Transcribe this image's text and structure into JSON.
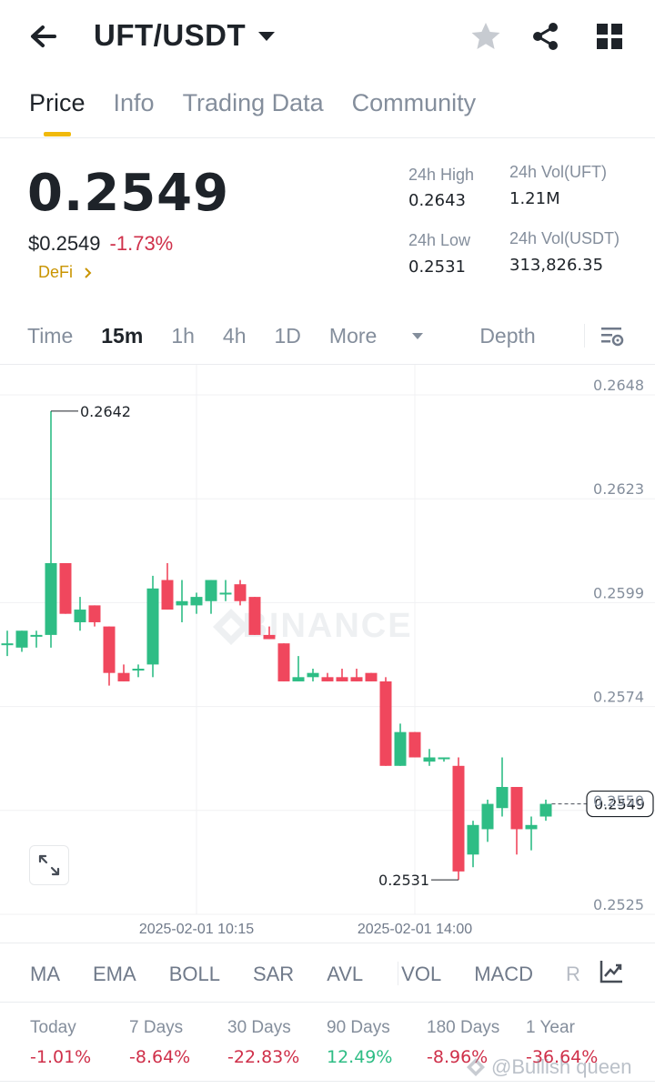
{
  "header": {
    "pair": "UFT/USDT",
    "icons": [
      "back-arrow-icon",
      "caret-down-icon",
      "star-icon",
      "share-icon",
      "grid-icon"
    ]
  },
  "tabs": [
    {
      "label": "Price",
      "active": true
    },
    {
      "label": "Info",
      "active": false
    },
    {
      "label": "Trading Data",
      "active": false
    },
    {
      "label": "Community",
      "active": false
    }
  ],
  "price": {
    "last": "0.2549",
    "fiat": "$0.2549",
    "change": "-1.73%",
    "tag": "DeFi"
  },
  "stats": {
    "high_label": "24h High",
    "high_value": "0.2643",
    "low_label": "24h Low",
    "low_value": "0.2531",
    "vol_base_label": "24h Vol(UFT)",
    "vol_base_value": "1.21M",
    "vol_quote_label": "24h Vol(USDT)",
    "vol_quote_value": "313,826.35"
  },
  "intervals": {
    "items": [
      "Time",
      "15m",
      "1h",
      "4h",
      "1D"
    ],
    "active": "15m",
    "more": "More",
    "depth": "Depth"
  },
  "colors": {
    "up": "#2ebd85",
    "down": "#f0475d",
    "accent": "#f0b90b"
  },
  "chart_data": {
    "type": "candlestick",
    "interval": "15m",
    "watermark": "BINANCE",
    "y_ticks": [
      "0.2648",
      "0.2623",
      "0.2599",
      "0.2574",
      "0.2550",
      "0.2525"
    ],
    "ylim": [
      0.2525,
      0.2648
    ],
    "x_ticks": [
      {
        "label": "2025-02-01 10:15",
        "index": 13
      },
      {
        "label": "2025-02-01 14:00",
        "index": 28
      }
    ],
    "current_price": "0.2549",
    "high_marker": {
      "label": "0.2642",
      "value": 0.2642,
      "index": 3
    },
    "low_marker": {
      "label": "0.2531",
      "value": 0.2531,
      "index": 31
    },
    "candles": [
      {
        "o": 0.2587,
        "h": 0.259,
        "l": 0.2584,
        "c": 0.2587
      },
      {
        "o": 0.2586,
        "h": 0.259,
        "l": 0.2585,
        "c": 0.259
      },
      {
        "o": 0.2589,
        "h": 0.259,
        "l": 0.2586,
        "c": 0.2589
      },
      {
        "o": 0.2589,
        "h": 0.2642,
        "l": 0.2586,
        "c": 0.2606
      },
      {
        "o": 0.2606,
        "h": 0.2606,
        "l": 0.2594,
        "c": 0.2594
      },
      {
        "o": 0.2592,
        "h": 0.2598,
        "l": 0.259,
        "c": 0.2595
      },
      {
        "o": 0.2596,
        "h": 0.2596,
        "l": 0.2591,
        "c": 0.2592
      },
      {
        "o": 0.2591,
        "h": 0.2591,
        "l": 0.2577,
        "c": 0.258
      },
      {
        "o": 0.258,
        "h": 0.2582,
        "l": 0.2578,
        "c": 0.2578
      },
      {
        "o": 0.2581,
        "h": 0.2582,
        "l": 0.2579,
        "c": 0.2581
      },
      {
        "o": 0.2582,
        "h": 0.2603,
        "l": 0.2579,
        "c": 0.26
      },
      {
        "o": 0.2602,
        "h": 0.2606,
        "l": 0.2595,
        "c": 0.2595
      },
      {
        "o": 0.2596,
        "h": 0.2602,
        "l": 0.2592,
        "c": 0.2597
      },
      {
        "o": 0.2596,
        "h": 0.2599,
        "l": 0.2594,
        "c": 0.2598
      },
      {
        "o": 0.2597,
        "h": 0.2602,
        "l": 0.2594,
        "c": 0.2602
      },
      {
        "o": 0.2599,
        "h": 0.2602,
        "l": 0.2597,
        "c": 0.2599
      },
      {
        "o": 0.2601,
        "h": 0.2602,
        "l": 0.2596,
        "c": 0.2597
      },
      {
        "o": 0.2598,
        "h": 0.2598,
        "l": 0.2589,
        "c": 0.2589
      },
      {
        "o": 0.2589,
        "h": 0.2591,
        "l": 0.2588,
        "c": 0.2588
      },
      {
        "o": 0.2587,
        "h": 0.2587,
        "l": 0.2578,
        "c": 0.2578
      },
      {
        "o": 0.2578,
        "h": 0.2584,
        "l": 0.2578,
        "c": 0.2579
      },
      {
        "o": 0.2579,
        "h": 0.2581,
        "l": 0.2578,
        "c": 0.258
      },
      {
        "o": 0.2579,
        "h": 0.258,
        "l": 0.2578,
        "c": 0.2578
      },
      {
        "o": 0.2579,
        "h": 0.2581,
        "l": 0.2578,
        "c": 0.2578
      },
      {
        "o": 0.2579,
        "h": 0.2581,
        "l": 0.2578,
        "c": 0.2578
      },
      {
        "o": 0.258,
        "h": 0.258,
        "l": 0.2578,
        "c": 0.2578
      },
      {
        "o": 0.2578,
        "h": 0.2579,
        "l": 0.2558,
        "c": 0.2558
      },
      {
        "o": 0.2558,
        "h": 0.2568,
        "l": 0.2558,
        "c": 0.2566
      },
      {
        "o": 0.2566,
        "h": 0.2566,
        "l": 0.256,
        "c": 0.256
      },
      {
        "o": 0.2559,
        "h": 0.2562,
        "l": 0.2558,
        "c": 0.256
      },
      {
        "o": 0.256,
        "h": 0.256,
        "l": 0.2559,
        "c": 0.256
      },
      {
        "o": 0.2558,
        "h": 0.256,
        "l": 0.2531,
        "c": 0.2533
      },
      {
        "o": 0.2537,
        "h": 0.2545,
        "l": 0.2534,
        "c": 0.2544
      },
      {
        "o": 0.2543,
        "h": 0.255,
        "l": 0.254,
        "c": 0.2549
      },
      {
        "o": 0.2548,
        "h": 0.256,
        "l": 0.2546,
        "c": 0.2553
      },
      {
        "o": 0.2553,
        "h": 0.2553,
        "l": 0.2537,
        "c": 0.2543
      },
      {
        "o": 0.2543,
        "h": 0.2546,
        "l": 0.2538,
        "c": 0.2544
      },
      {
        "o": 0.2546,
        "h": 0.255,
        "l": 0.2545,
        "c": 0.2549
      }
    ]
  },
  "indicators": [
    "MA",
    "EMA",
    "BOLL",
    "SAR",
    "AVL",
    "VOL",
    "MACD",
    "R"
  ],
  "performance": [
    {
      "label": "Today",
      "value": "-1.01%",
      "dir": "neg"
    },
    {
      "label": "7 Days",
      "value": "-8.64%",
      "dir": "neg"
    },
    {
      "label": "30 Days",
      "value": "-22.83%",
      "dir": "neg"
    },
    {
      "label": "90 Days",
      "value": "12.49%",
      "dir": "pos"
    },
    {
      "label": "180 Days",
      "value": "-8.96%",
      "dir": "neg"
    },
    {
      "label": "1 Year",
      "value": "-36.64%",
      "dir": "neg"
    }
  ],
  "watermark_user": "@Bullish queen"
}
